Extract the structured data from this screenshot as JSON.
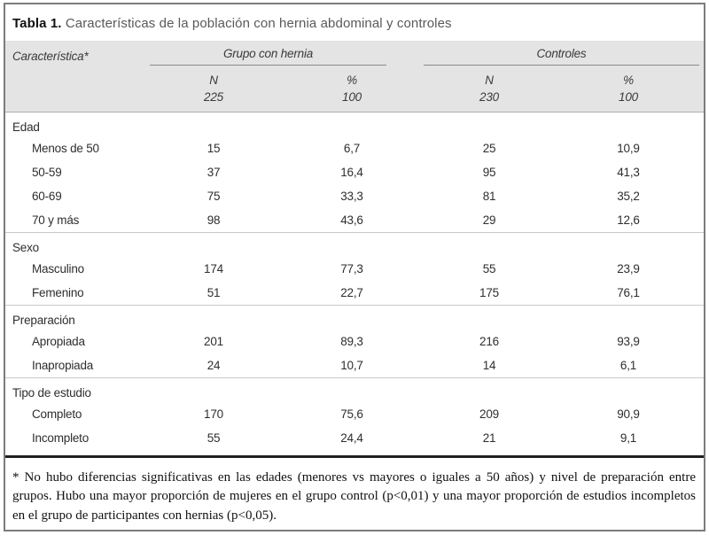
{
  "title": {
    "label": "Tabla 1.",
    "text": "Características de la población con hernia abdominal y controles"
  },
  "table": {
    "row_header": "Característica*",
    "groups": [
      {
        "label": "Grupo con hernia",
        "n_header": "N",
        "pct_header": "%",
        "n_total": "225",
        "pct_total": "100"
      },
      {
        "label": "Controles",
        "n_header": "N",
        "pct_header": "%",
        "n_total": "230",
        "pct_total": "100"
      }
    ],
    "sections": [
      {
        "label": "Edad",
        "rows": [
          {
            "label": "Menos de 50",
            "values": [
              "15",
              "6,7",
              "25",
              "10,9"
            ]
          },
          {
            "label": "50-59",
            "values": [
              "37",
              "16,4",
              "95",
              "41,3"
            ]
          },
          {
            "label": "60-69",
            "values": [
              "75",
              "33,3",
              "81",
              "35,2"
            ]
          },
          {
            "label": "70 y más",
            "values": [
              "98",
              "43,6",
              "29",
              "12,6"
            ]
          }
        ]
      },
      {
        "label": "Sexo",
        "rows": [
          {
            "label": "Masculino",
            "values": [
              "174",
              "77,3",
              "55",
              "23,9"
            ]
          },
          {
            "label": "Femenino",
            "values": [
              "51",
              "22,7",
              "175",
              "76,1"
            ]
          }
        ]
      },
      {
        "label": "Preparación",
        "rows": [
          {
            "label": "Apropiada",
            "values": [
              "201",
              "89,3",
              "216",
              "93,9"
            ]
          },
          {
            "label": "Inapropiada",
            "values": [
              "24",
              "10,7",
              "14",
              "6,1"
            ]
          }
        ]
      },
      {
        "label": "Tipo de estudio",
        "rows": [
          {
            "label": "Completo",
            "values": [
              "170",
              "75,6",
              "209",
              "90,9"
            ]
          },
          {
            "label": "Incompleto",
            "values": [
              "55",
              "24,4",
              "21",
              "9,1"
            ]
          }
        ]
      }
    ]
  },
  "footnote": {
    "text": "* No hubo diferencias significativas en las edades (menores vs mayores o iguales a 50 años) y nivel de preparación entre grupos. Hubo una mayor proporción de mujeres en el grupo control (p<0,01) y una mayor proporción de estudios incompletos en el grupo de participantes con hernias (p<0,05)."
  },
  "colors": {
    "header_band": "#e4e4e4",
    "outer_border": "#7c7c7c",
    "thick_rule": "#1f1f1f",
    "separator": "#c9c9c9",
    "title_muted": "#595959"
  }
}
